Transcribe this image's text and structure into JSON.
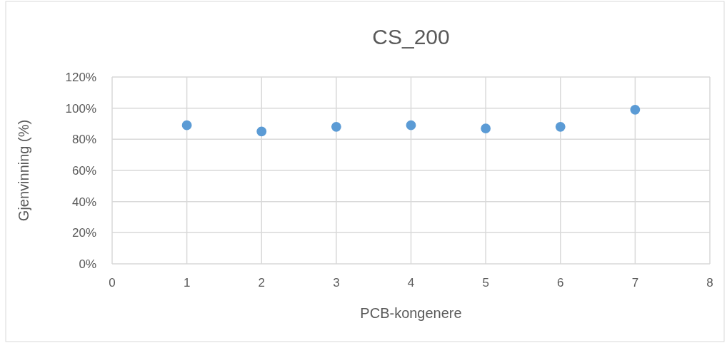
{
  "chart_data": {
    "type": "scatter",
    "title": "CS_200",
    "xlabel": "PCB-kongenere",
    "ylabel": "Gjenvinning (%)",
    "x": [
      1,
      2,
      3,
      4,
      5,
      6,
      7
    ],
    "series": [
      {
        "color": "#5b9bd5",
        "values": [
          0.89,
          0.85,
          0.88,
          0.89,
          0.87,
          0.88,
          0.99
        ]
      }
    ],
    "xlim": [
      0,
      8
    ],
    "xticks": [
      0,
      1,
      2,
      3,
      4,
      5,
      6,
      7,
      8
    ],
    "ylim": [
      0,
      1.2
    ],
    "yticks": [
      {
        "value": 0,
        "label": "0%"
      },
      {
        "value": 0.2,
        "label": "20%"
      },
      {
        "value": 0.4,
        "label": "40%"
      },
      {
        "value": 0.6,
        "label": "60%"
      },
      {
        "value": 0.8,
        "label": "80%"
      },
      {
        "value": 1,
        "label": "100%"
      },
      {
        "value": 1.2,
        "label": "120%"
      }
    ],
    "grid": true,
    "marker": "circle"
  }
}
